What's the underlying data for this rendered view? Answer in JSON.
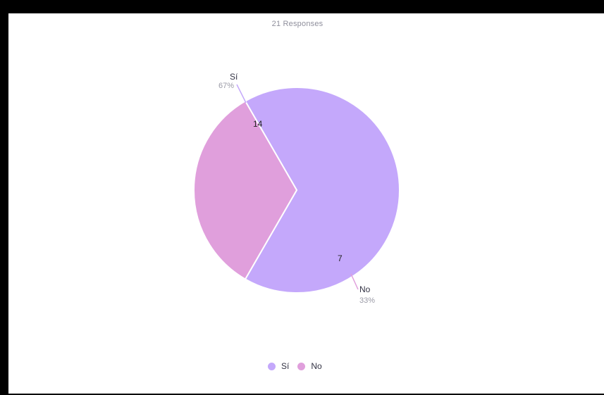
{
  "header": {
    "responses_label": "21 Responses"
  },
  "chart_data": {
    "type": "pie",
    "title": "",
    "categories": [
      "Sí",
      "No"
    ],
    "values": [
      14,
      7
    ],
    "percent_labels": [
      "67%",
      "33%"
    ],
    "colors": [
      "#c4a8fb",
      "#e09fdc"
    ],
    "legend_position": "bottom"
  }
}
